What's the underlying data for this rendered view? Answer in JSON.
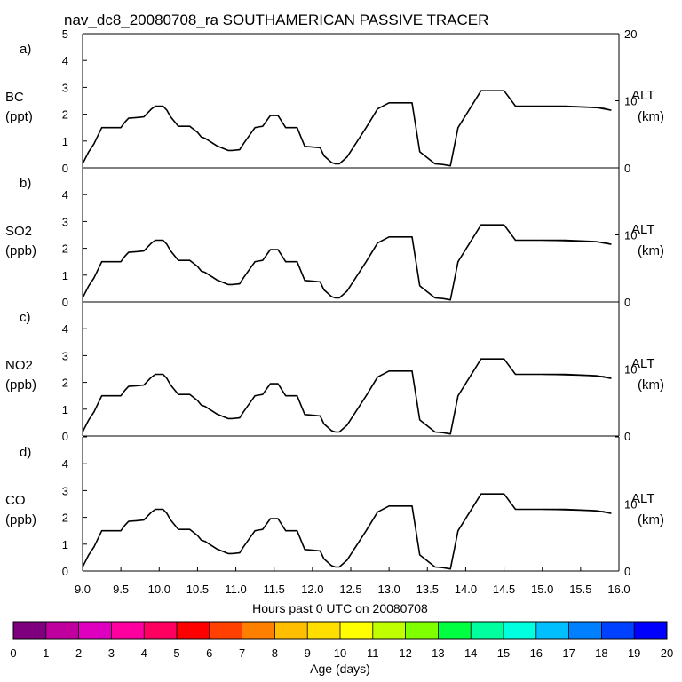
{
  "chart_data": {
    "type": "line",
    "title": "nav_dc8_20080708_ra SOUTHAMERICAN PASSIVE TRACER",
    "xlabel": "Hours past 0 UTC on 20080708",
    "xlim": [
      9.0,
      16.0
    ],
    "x_ticks": [
      "9.0",
      "9.5",
      "10.0",
      "10.5",
      "11.0",
      "11.5",
      "12.0",
      "12.5",
      "13.0",
      "13.5",
      "14.0",
      "14.5",
      "15.0",
      "15.5",
      "16.0"
    ],
    "left_ylim": [
      0,
      5
    ],
    "left_ticks": [
      "0",
      "1",
      "2",
      "3",
      "4",
      "5"
    ],
    "right_ylim": [
      0,
      20
    ],
    "right_label": "ALT",
    "right_unit": "(km)",
    "panels": [
      {
        "letter": "a)",
        "species": "BC",
        "unit": "(ppt)",
        "right_ticks": [
          "0",
          "10",
          "20"
        ]
      },
      {
        "letter": "b)",
        "species": "SO2",
        "unit": "(ppb)",
        "right_ticks": [
          "0",
          "10",
          ""
        ]
      },
      {
        "letter": "c)",
        "species": "NO2",
        "unit": "(ppb)",
        "right_ticks": [
          "0",
          "10",
          ""
        ]
      },
      {
        "letter": "d)",
        "species": "CO",
        "unit": "(ppb)",
        "right_ticks": [
          "0",
          "10",
          ""
        ]
      }
    ],
    "altitude_km": {
      "x": [
        9.0,
        9.08,
        9.15,
        9.25,
        9.5,
        9.55,
        9.6,
        9.7,
        9.8,
        9.85,
        9.9,
        9.95,
        10.05,
        10.1,
        10.15,
        10.25,
        10.4,
        10.5,
        10.55,
        10.6,
        10.75,
        10.9,
        10.95,
        11.05,
        11.1,
        11.25,
        11.3,
        11.35,
        11.45,
        11.55,
        11.65,
        11.8,
        11.9,
        12.0,
        12.1,
        12.15,
        12.25,
        12.3,
        12.35,
        12.45,
        12.7,
        12.85,
        13.0,
        13.1,
        13.3,
        13.4,
        13.6,
        13.7,
        13.8,
        13.9,
        14.2,
        14.5,
        14.65,
        15.0,
        15.3,
        15.7,
        15.9
      ],
      "y": [
        0.6,
        2.4,
        3.6,
        6.0,
        6.0,
        6.8,
        7.4,
        7.5,
        7.6,
        8.2,
        8.8,
        9.2,
        9.2,
        8.6,
        7.6,
        6.2,
        6.2,
        5.3,
        4.6,
        4.4,
        3.3,
        2.6,
        2.6,
        2.7,
        3.6,
        6.0,
        6.1,
        6.2,
        7.8,
        7.8,
        6.0,
        6.0,
        3.2,
        3.1,
        3.0,
        1.8,
        0.8,
        0.6,
        0.6,
        1.6,
        6.0,
        8.8,
        9.7,
        9.7,
        9.7,
        2.4,
        0.6,
        0.5,
        0.3,
        6.0,
        11.5,
        11.5,
        9.2,
        9.2,
        9.2,
        9.0,
        8.6
      ]
    },
    "altitude_km_secondary": {
      "x": [
        15.0,
        15.5,
        15.8,
        15.9
      ],
      "y": [
        9.2,
        9.05,
        8.9,
        8.6
      ]
    }
  }
}
